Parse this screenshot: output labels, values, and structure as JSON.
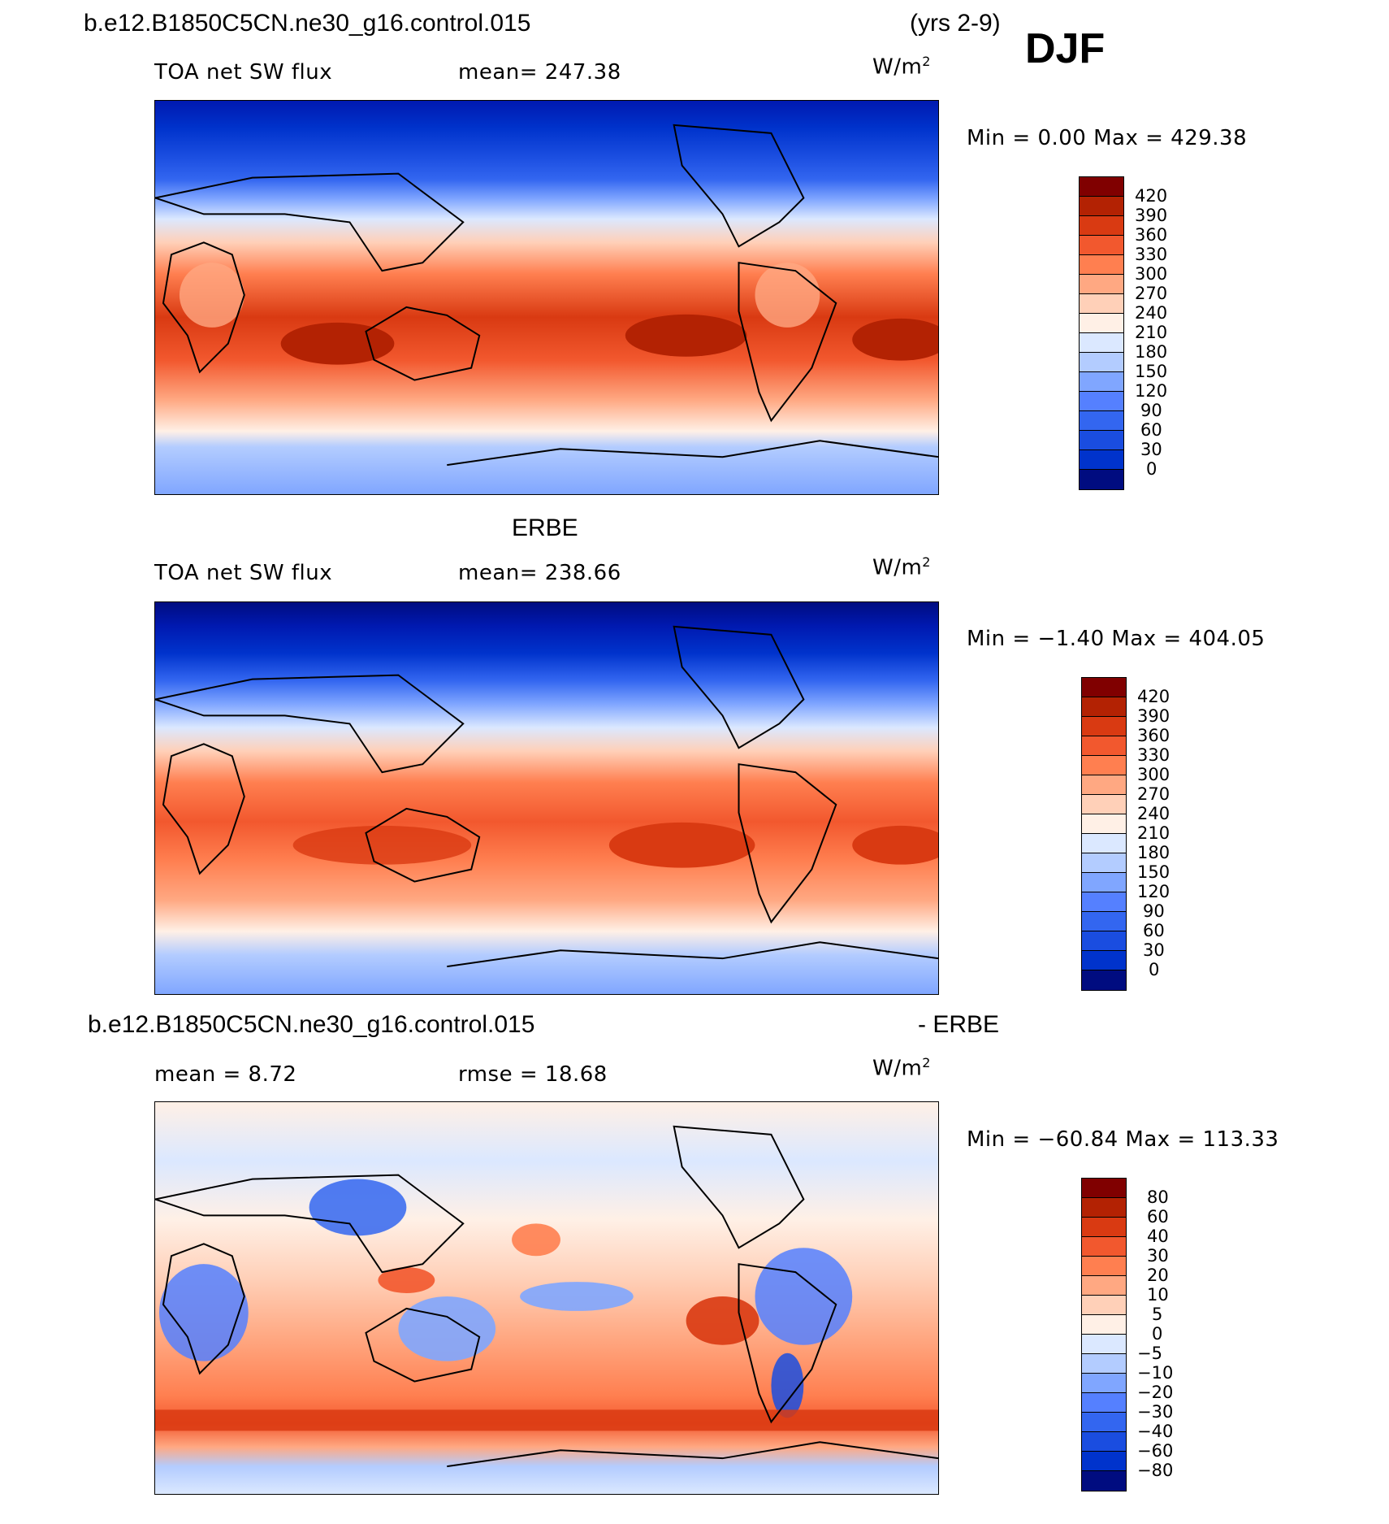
{
  "header": {
    "case_name": "b.e12.B1850C5CN.ne30_g16.control.015",
    "years": "(yrs 2-9)",
    "season": "DJF"
  },
  "colors": {
    "sw_scale": [
      "#000c80",
      "#0019b0",
      "#0033cc",
      "#1a4de0",
      "#3366f0",
      "#5580ff",
      "#80a6ff",
      "#b3ccff",
      "#dbe8ff",
      "#fff0e6",
      "#ffd0b8",
      "#ffa882",
      "#ff7f50",
      "#f2582e",
      "#d93a12",
      "#b32203",
      "#800000"
    ],
    "diff_scale": [
      "#000c80",
      "#0019b0",
      "#0033cc",
      "#1a4de0",
      "#3366f0",
      "#5580ff",
      "#80a6ff",
      "#b3ccff",
      "#dbe8ff",
      "#fff0e6",
      "#ffd0b8",
      "#ffa882",
      "#ff7f50",
      "#f2582e",
      "#d93a12",
      "#b32203",
      "#800000"
    ]
  },
  "panels": [
    {
      "variable": "TOA net SW flux",
      "stat_label": "mean= 247.38",
      "units_base": "W/m",
      "units_exp": "2",
      "minmax": "Min =    0.00 Max = 429.38",
      "tick_labels": [
        "420",
        "390",
        "360",
        "330",
        "300",
        "270",
        "240",
        "210",
        "180",
        "150",
        "120",
        "90",
        "60",
        "30",
        "0"
      ]
    },
    {
      "title": "ERBE",
      "variable": "TOA net SW flux",
      "stat_label": "mean= 238.66",
      "units_base": "W/m",
      "units_exp": "2",
      "minmax": "Min =  −1.40 Max = 404.05",
      "tick_labels": [
        "420",
        "390",
        "360",
        "330",
        "300",
        "270",
        "240",
        "210",
        "180",
        "150",
        "120",
        "90",
        "60",
        "30",
        "0"
      ]
    },
    {
      "title_left": "b.e12.B1850C5CN.ne30_g16.control.015",
      "title_right": "- ERBE",
      "mean_label": "mean =    8.72",
      "rmse_label": "rmse =   18.68",
      "units_base": "W/m",
      "units_exp": "2",
      "minmax": "Min = −60.84 Max = 113.33",
      "tick_labels": [
        "80",
        "60",
        "40",
        "30",
        "20",
        "10",
        "5",
        "0",
        "−5",
        "−10",
        "−20",
        "−30",
        "−40",
        "−60",
        "−80"
      ]
    }
  ]
}
